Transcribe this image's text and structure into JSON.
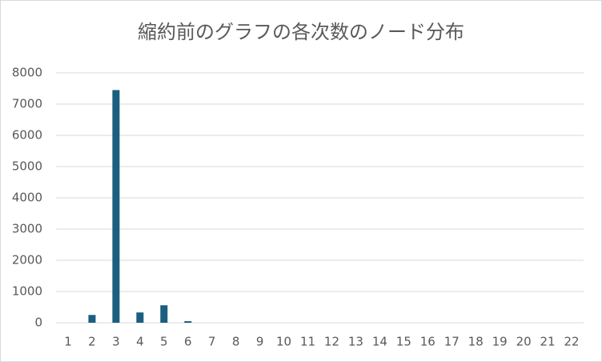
{
  "chart_data": {
    "type": "bar",
    "title": "縮約前のグラフの各次数のノード分布",
    "categories": [
      "1",
      "2",
      "3",
      "4",
      "5",
      "6",
      "7",
      "8",
      "9",
      "10",
      "11",
      "12",
      "13",
      "14",
      "15",
      "16",
      "17",
      "18",
      "19",
      "20",
      "21",
      "22"
    ],
    "values": [
      0,
      250,
      7450,
      330,
      560,
      50,
      0,
      0,
      0,
      0,
      0,
      0,
      0,
      0,
      0,
      0,
      0,
      0,
      0,
      0,
      0,
      0
    ],
    "color": "#1b5e80",
    "ylim": [
      0,
      8000
    ],
    "yticks": [
      0,
      1000,
      2000,
      3000,
      4000,
      5000,
      6000,
      7000,
      8000
    ],
    "grid": true
  }
}
